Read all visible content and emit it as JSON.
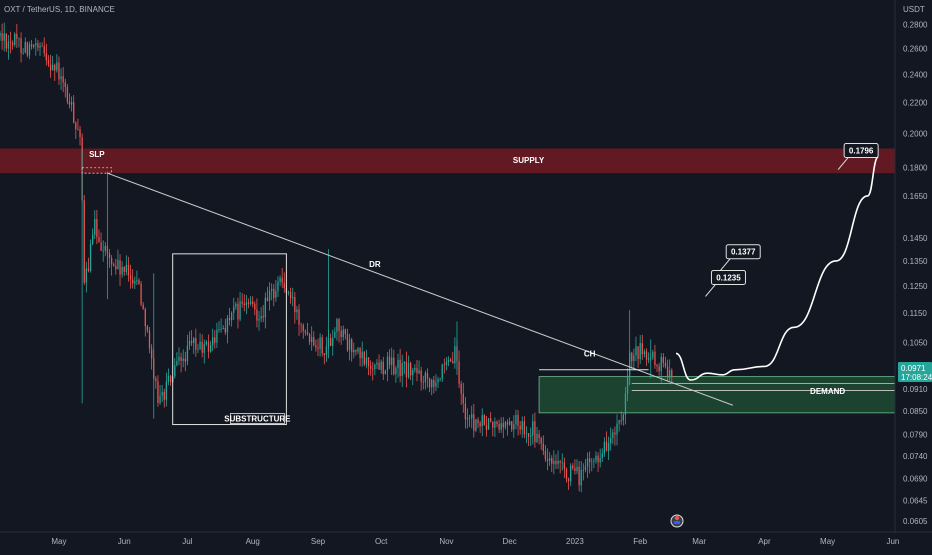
{
  "header": {
    "symbol_title": "OXT / TetherUS, 1D, BINANCE",
    "currency": "USDT"
  },
  "colors": {
    "background": "#131722",
    "up_candle": "#26a69a",
    "down_candle": "#ef5350",
    "supply_zone": "#6b1a22",
    "demand_zone": "#1f4a32",
    "current_price_bg": "#26a69a",
    "text": "#d1d4dc",
    "line": "#ffffff"
  },
  "current_price": {
    "value": "0.0971",
    "countdown": "17:08:24"
  },
  "chart_data": {
    "type": "candlestick",
    "title": "OXT / TetherUS, 1D, BINANCE",
    "y_scale": "log",
    "ylim": [
      0.0585,
      0.302
    ],
    "y_ticks": [
      "0.2800",
      "0.2600",
      "0.2400",
      "0.2200",
      "0.2000",
      "0.1800",
      "0.1650",
      "0.1450",
      "0.1350",
      "0.1250",
      "0.1150",
      "0.1050",
      "0.0910",
      "0.0850",
      "0.0790",
      "0.0740",
      "0.0690",
      "0.0645",
      "0.0605"
    ],
    "y_tick_values": [
      0.28,
      0.26,
      0.24,
      0.22,
      0.2,
      0.18,
      0.165,
      0.145,
      0.135,
      0.125,
      0.115,
      0.105,
      0.091,
      0.085,
      0.079,
      0.074,
      0.069,
      0.0645,
      0.0605
    ],
    "x_labels": [
      "May",
      "Jun",
      "Jul",
      "Aug",
      "Sep",
      "Oct",
      "Nov",
      "Dec",
      "2023",
      "Feb",
      "Mar",
      "Apr",
      "May",
      "Jun"
    ],
    "x_label_dates": [
      "2022-05-01",
      "2022-06-01",
      "2022-07-01",
      "2022-08-01",
      "2022-09-01",
      "2022-10-01",
      "2022-11-01",
      "2022-12-01",
      "2023-01-01",
      "2023-02-01",
      "2023-03-01",
      "2023-04-01",
      "2023-05-01",
      "2023-06-01"
    ],
    "xlim": [
      "2022-04-03",
      "2023-06-02"
    ],
    "close_path": [
      [
        "2022-04-03",
        0.27
      ],
      [
        "2022-04-15",
        0.262
      ],
      [
        "2022-04-25",
        0.255
      ],
      [
        "2022-05-01",
        0.24
      ],
      [
        "2022-05-07",
        0.215
      ],
      [
        "2022-05-11",
        0.2
      ],
      [
        "2022-05-13",
        0.125
      ],
      [
        "2022-05-18",
        0.15
      ],
      [
        "2022-05-25",
        0.135
      ],
      [
        "2022-06-01",
        0.13
      ],
      [
        "2022-06-07",
        0.128
      ],
      [
        "2022-06-12",
        0.11
      ],
      [
        "2022-06-15",
        0.092
      ],
      [
        "2022-06-18",
        0.088
      ],
      [
        "2022-06-25",
        0.096
      ],
      [
        "2022-07-03",
        0.104
      ],
      [
        "2022-07-10",
        0.103
      ],
      [
        "2022-07-20",
        0.112
      ],
      [
        "2022-07-28",
        0.118
      ],
      [
        "2022-08-05",
        0.115
      ],
      [
        "2022-08-14",
        0.128
      ],
      [
        "2022-08-20",
        0.118
      ],
      [
        "2022-08-28",
        0.108
      ],
      [
        "2022-09-05",
        0.103
      ],
      [
        "2022-09-10",
        0.112
      ],
      [
        "2022-09-15",
        0.104
      ],
      [
        "2022-09-25",
        0.098
      ],
      [
        "2022-10-05",
        0.098
      ],
      [
        "2022-10-15",
        0.096
      ],
      [
        "2022-10-25",
        0.094
      ],
      [
        "2022-11-01",
        0.096
      ],
      [
        "2022-11-05",
        0.101
      ],
      [
        "2022-11-09",
        0.086
      ],
      [
        "2022-11-13",
        0.082
      ],
      [
        "2022-11-25",
        0.081
      ],
      [
        "2022-12-05",
        0.082
      ],
      [
        "2022-12-12",
        0.08
      ],
      [
        "2022-12-20",
        0.072
      ],
      [
        "2022-12-28",
        0.07
      ],
      [
        "2023-01-03",
        0.0695
      ],
      [
        "2023-01-10",
        0.073
      ],
      [
        "2023-01-18",
        0.078
      ],
      [
        "2023-01-24",
        0.082
      ],
      [
        "2023-01-27",
        0.099
      ],
      [
        "2023-02-01",
        0.102
      ],
      [
        "2023-02-08",
        0.099
      ],
      [
        "2023-02-12",
        0.097
      ],
      [
        "2023-02-16",
        0.0971
      ]
    ],
    "projection_path": [
      [
        "2023-02-18",
        0.1015
      ],
      [
        "2023-02-25",
        0.0935
      ],
      [
        "2023-03-05",
        0.0955
      ],
      [
        "2023-03-12",
        0.095
      ],
      [
        "2023-03-18",
        0.0965
      ],
      [
        "2023-04-01",
        0.0975
      ],
      [
        "2023-04-15",
        0.11
      ],
      [
        "2023-05-05",
        0.135
      ],
      [
        "2023-05-20",
        0.165
      ],
      [
        "2023-05-25",
        0.186
      ]
    ],
    "zones": [
      {
        "name": "SUPPLY",
        "from": 0.177,
        "to": 0.191,
        "start": "2022-04-03",
        "end": "2023-06-02"
      },
      {
        "name": "DEMAND",
        "from": 0.0845,
        "to": 0.0945,
        "start": "2022-12-15",
        "end": "2023-06-02"
      }
    ],
    "annotations": {
      "slp": "SLP",
      "dr": "DR",
      "ch": "CH",
      "substructure": "SUBSTRUCTURE",
      "supply": "SUPPLY",
      "demand": "DEMAND",
      "targets": [
        "0.1235",
        "0.1377",
        "0.1796"
      ]
    },
    "trendline": [
      [
        "2022-05-24",
        0.177
      ],
      [
        "2023-03-17",
        0.0865
      ]
    ],
    "substructure_box": {
      "start": "2022-06-24",
      "end": "2022-08-17",
      "high": 0.138,
      "low": 0.0815
    },
    "target_points": [
      [
        "2023-03-04",
        0.121
      ],
      [
        "2023-03-11",
        0.131
      ],
      [
        "2023-05-06",
        0.179
      ]
    ]
  }
}
